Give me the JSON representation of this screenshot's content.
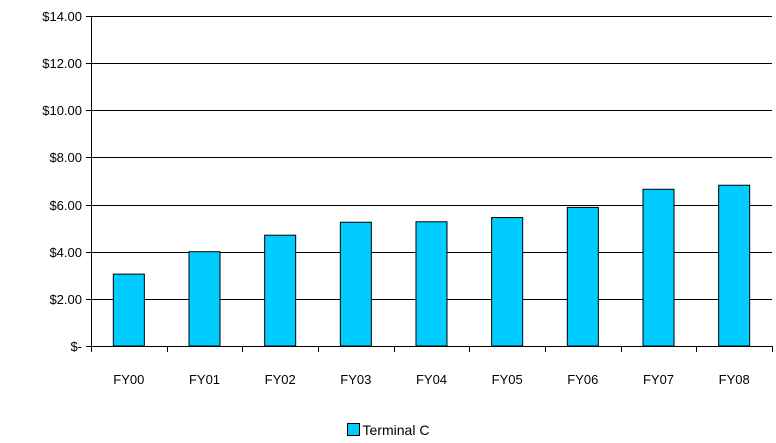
{
  "chart_data": {
    "type": "bar",
    "categories": [
      "FY00",
      "FY01",
      "FY02",
      "FY03",
      "FY04",
      "FY05",
      "FY06",
      "FY07",
      "FY08"
    ],
    "series": [
      {
        "name": "Terminal C",
        "values": [
          3.05,
          4.0,
          4.7,
          5.25,
          5.27,
          5.45,
          5.88,
          6.65,
          6.82
        ],
        "color": "#00ccff"
      }
    ],
    "y_ticks": [
      {
        "value": 0,
        "label": "$-"
      },
      {
        "value": 2,
        "label": "$2.00"
      },
      {
        "value": 4,
        "label": "$4.00"
      },
      {
        "value": 6,
        "label": "$6.00"
      },
      {
        "value": 8,
        "label": "$8.00"
      },
      {
        "value": 10,
        "label": "$10.00"
      },
      {
        "value": 12,
        "label": "$12.00"
      },
      {
        "value": 14,
        "label": "$14.00"
      }
    ],
    "ylim": [
      0,
      14
    ],
    "grid": true,
    "legend_position": "bottom"
  }
}
